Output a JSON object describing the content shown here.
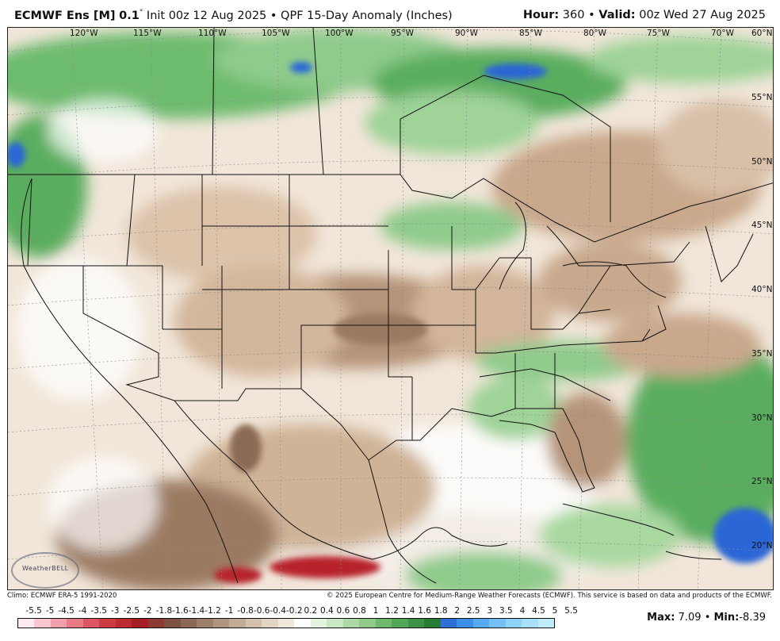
{
  "header": {
    "model": "ECMWF Ens [M]",
    "res": "0.1",
    "deg": "°",
    "init": "Init 00z 12 Aug 2025",
    "sep": "•",
    "product": "QPF 15-Day Anomaly (Inches)",
    "hour_label": "Hour:",
    "hour": "360",
    "valid_label": "Valid:",
    "valid": "00z Wed 27 Aug 2025"
  },
  "lon_labels": [
    "120°W",
    "115°W",
    "110°W",
    "105°W",
    "100°W",
    "95°W",
    "90°W",
    "85°W",
    "80°W",
    "75°W",
    "70°W"
  ],
  "lat_labels": [
    "60°N",
    "55°N",
    "50°N",
    "45°N",
    "40°N",
    "35°N",
    "30°N",
    "25°N",
    "20°N"
  ],
  "logo": "WeatherBELL",
  "footer": {
    "climo": "Climo: ECMWF ERA-5 1991-2020",
    "copyright": "© 2025 European Centre for Medium-Range Weather Forecasts (ECMWF). This service is based on data and products of the ECMWF."
  },
  "colorbar": {
    "labels": [
      "-5.5",
      "-5",
      "-4.5",
      "-4",
      "-3.5",
      "-3",
      "-2.5",
      "-2",
      "-1.8",
      "-1.6",
      "-1.4",
      "-1.2",
      "-1",
      "-0.8",
      "-0.6",
      "-0.4",
      "-0.2",
      "0.2",
      "0.4",
      "0.6",
      "0.8",
      "1",
      "1.2",
      "1.4",
      "1.6",
      "1.8",
      "2",
      "2.5",
      "3",
      "3.5",
      "4",
      "4.5",
      "5",
      "5.5"
    ],
    "colors": [
      "#ffe8ee",
      "#f9c7cf",
      "#f1a0ab",
      "#e77b86",
      "#dd5663",
      "#cf3b45",
      "#bd2a31",
      "#a61e26",
      "#8d3a33",
      "#7d5245",
      "#8a6a57",
      "#9d7f69",
      "#ae9580",
      "#c1ab95",
      "#d2c0ac",
      "#e2d4c2",
      "#f0e6d9",
      "#ffffff",
      "#e3f3df",
      "#c9e8c3",
      "#add9a7",
      "#8fca8b",
      "#6fb96f",
      "#53a658",
      "#3b9145",
      "#267b35",
      "#2f6fd6",
      "#3c8fe8",
      "#56a9f2",
      "#72c0f6",
      "#8dd2f8",
      "#a6e0f9",
      "#bfebfb"
    ]
  },
  "stats": {
    "max_label": "Max:",
    "max": "7.09",
    "min_label": "Min:",
    "min": "-8.39",
    "sep": "•"
  },
  "colors": {
    "dry_light": "#e9d8c6",
    "dry_mid": "#c7a68a",
    "dry_dark": "#9b7a62",
    "very_dry": "#b8202a",
    "wet_light": "#a9d8a0",
    "wet_mid": "#5bb063",
    "wet_dark": "#2f8a41",
    "very_wet": "#2a66d6",
    "neutral": "#ffffff"
  }
}
